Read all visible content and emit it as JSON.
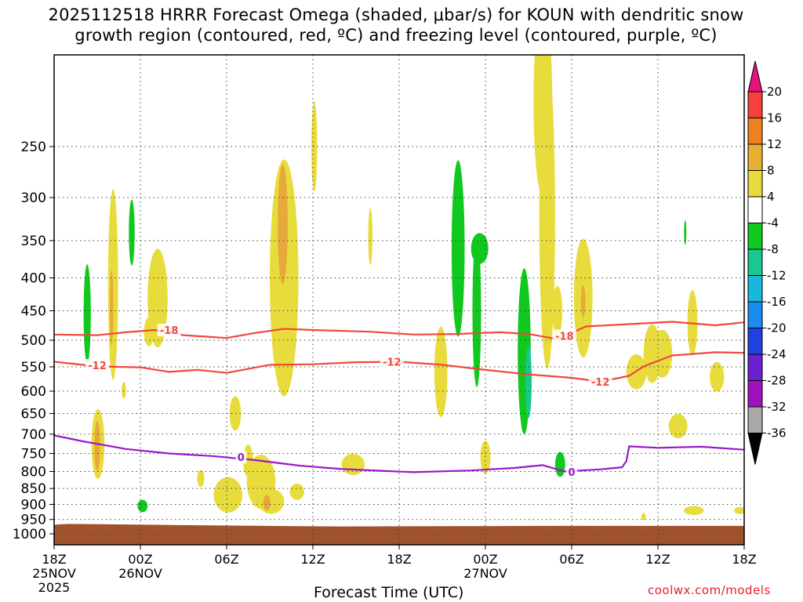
{
  "title_line1": "2025112518 HRRR Forecast Omega (shaded, μbar/s) for KOUN with dendritic snow",
  "title_line2": "growth region (contoured, red, ºC) and freezing level (contoured, purple, ºC)",
  "credit": "coolwx.com/models",
  "chart_data": {
    "type": "heatmap",
    "xlabel": "Forecast Time (UTC)",
    "ylabel": "",
    "x_unit": "forecast hour",
    "xlim": [
      0,
      48
    ],
    "y_unit": "hPa",
    "ylim": [
      1040,
      180
    ],
    "y_scale": "log",
    "grid": true,
    "y_ticks": [
      250,
      300,
      350,
      400,
      450,
      500,
      550,
      600,
      650,
      700,
      750,
      800,
      850,
      900,
      950,
      1000
    ],
    "x_ticks": [
      {
        "hour": 0,
        "lines": [
          "18Z",
          "25NOV",
          "2025"
        ]
      },
      {
        "hour": 6,
        "lines": [
          "00Z",
          "26NOV"
        ]
      },
      {
        "hour": 12,
        "lines": [
          "06Z"
        ]
      },
      {
        "hour": 18,
        "lines": [
          "12Z"
        ]
      },
      {
        "hour": 24,
        "lines": [
          "18Z"
        ]
      },
      {
        "hour": 30,
        "lines": [
          "00Z",
          "27NOV"
        ]
      },
      {
        "hour": 36,
        "lines": [
          "06Z"
        ]
      },
      {
        "hour": 42,
        "lines": [
          "12Z"
        ]
      },
      {
        "hour": 48,
        "lines": [
          "18Z"
        ]
      }
    ],
    "colorbar": {
      "ticks": [
        "20",
        "16",
        "12",
        "8",
        "4",
        "-4",
        "-8",
        "-12",
        "-16",
        "-20",
        "-24",
        "-28",
        "-32",
        "-36"
      ],
      "colors": [
        "#e6137a",
        "#f5403c",
        "#ef8020",
        "#e6b030",
        "#e8dc3c",
        "#ffffff",
        "#10c81e",
        "#18c890",
        "#18b8dc",
        "#1a8cf0",
        "#2040e0",
        "#6a20d0",
        "#a010c0",
        "#a8a8a8",
        "#000000"
      ]
    },
    "contour_lines": [
      {
        "label": "-18",
        "color": "#f0483c",
        "points": [
          [
            0,
            490
          ],
          [
            3,
            491
          ],
          [
            5,
            486
          ],
          [
            7,
            482
          ],
          [
            9,
            491
          ],
          [
            12,
            496
          ],
          [
            14,
            487
          ],
          [
            16,
            480
          ],
          [
            18,
            482
          ],
          [
            22,
            485
          ],
          [
            25,
            490
          ],
          [
            28,
            489
          ],
          [
            31,
            486
          ],
          [
            33,
            489
          ],
          [
            35,
            498
          ],
          [
            37,
            476
          ],
          [
            40,
            472
          ],
          [
            43,
            468
          ],
          [
            46,
            474
          ],
          [
            48,
            469
          ]
        ],
        "label_at": [
          8,
          482
        ]
      },
      {
        "label": "-18",
        "color": "#f0483c",
        "label_only": true,
        "label_at": [
          35.5,
          492
        ]
      },
      {
        "label": "-12",
        "color": "#f0483c",
        "points": [
          [
            0,
            540
          ],
          [
            3,
            549
          ],
          [
            6,
            551
          ],
          [
            8,
            560
          ],
          [
            10,
            556
          ],
          [
            12,
            562
          ],
          [
            15,
            546
          ],
          [
            18,
            545
          ],
          [
            21,
            541
          ],
          [
            24,
            540
          ],
          [
            27,
            546
          ],
          [
            30,
            556
          ],
          [
            33,
            565
          ],
          [
            36,
            572
          ],
          [
            38,
            580
          ],
          [
            40,
            568
          ],
          [
            41,
            549
          ],
          [
            43,
            528
          ],
          [
            46,
            522
          ],
          [
            48,
            523
          ]
        ],
        "label_at": [
          3,
          547
        ]
      },
      {
        "label": "-12",
        "color": "#f0483c",
        "label_only": true,
        "label_at": [
          23.5,
          540
        ]
      },
      {
        "label": "-12",
        "color": "#f0483c",
        "label_only": true,
        "label_at": [
          38,
          580
        ]
      },
      {
        "label": "0",
        "color": "#9a18c8",
        "points": [
          [
            0,
            703
          ],
          [
            2,
            718
          ],
          [
            5,
            738
          ],
          [
            8,
            750
          ],
          [
            11,
            757
          ],
          [
            14,
            768
          ],
          [
            17,
            783
          ],
          [
            20,
            793
          ],
          [
            25,
            802
          ],
          [
            29,
            797
          ],
          [
            32,
            790
          ],
          [
            34,
            782
          ],
          [
            35.5,
            800
          ],
          [
            38,
            794
          ],
          [
            39.5,
            788
          ],
          [
            39.8,
            771
          ],
          [
            40,
            731
          ],
          [
            42,
            735
          ],
          [
            45,
            732
          ],
          [
            48,
            740
          ]
        ],
        "label_at": [
          13,
          760
        ]
      },
      {
        "label": "0",
        "color": "#9a18c8",
        "label_only": true,
        "label_at": [
          36,
          801
        ]
      }
    ]
  }
}
